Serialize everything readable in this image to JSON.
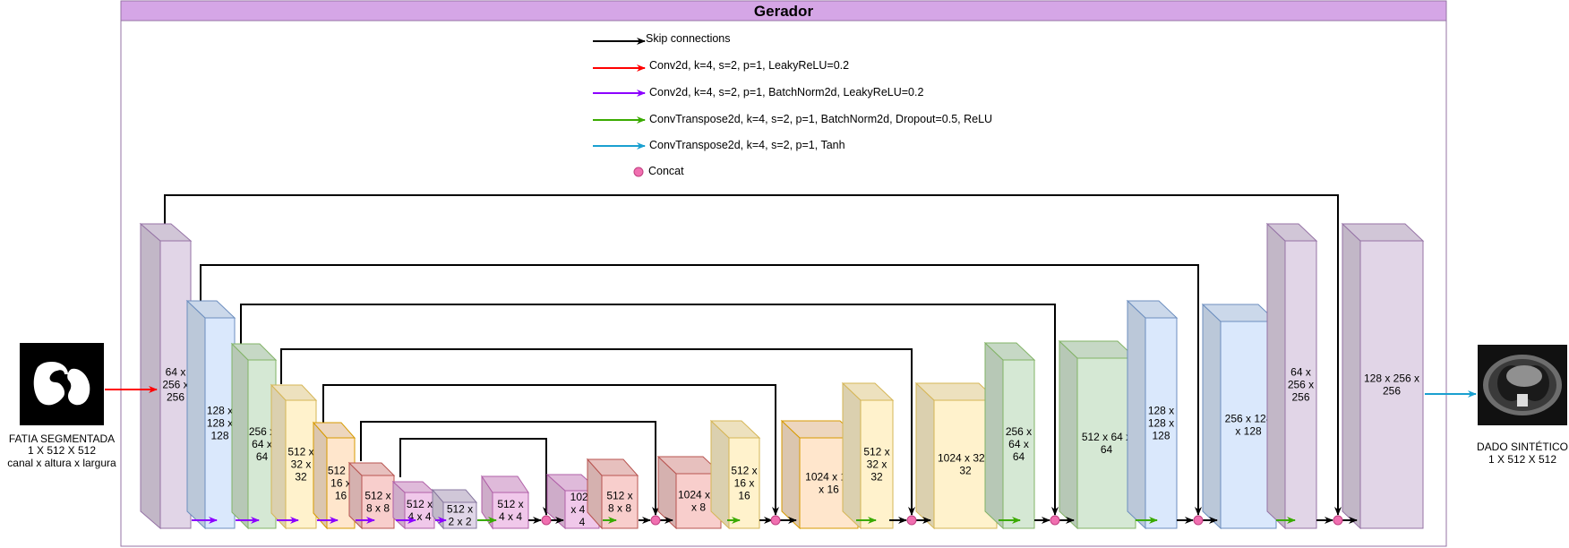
{
  "title": "Gerador",
  "legend": [
    {
      "label": "Skip connections",
      "color": "#000000"
    },
    {
      "label": "Conv2d, k=4, s=2, p=1, LeakyReLU=0.2",
      "color": "#ff0000"
    },
    {
      "label": "Conv2d, k=4, s=2, p=1, BatchNorm2d, LeakyReLU=0.2",
      "color": "#8c00ff"
    },
    {
      "label": "ConvTranspose2d, k=4, s=2, p=1, BatchNorm2d, Dropout=0.5, ReLU",
      "color": "#3aaa00"
    },
    {
      "label": "ConvTranspose2d, k=4, s=2, p=1, Tanh",
      "color": "#1aa0d0"
    },
    {
      "label": "Concat",
      "color": "#f06fb0"
    }
  ],
  "input": {
    "lines": [
      "FATIA SEGMENTADA",
      "1 X 512 X 512",
      "canal x altura x largura"
    ]
  },
  "output": {
    "lines": [
      "DADO SINTÉTICO",
      "1 X 512 X 512"
    ]
  },
  "blocks": [
    {
      "id": "e1",
      "lines": [
        "64 x",
        "256 x",
        "256"
      ]
    },
    {
      "id": "e2",
      "lines": [
        "128 x",
        "128 x",
        "128"
      ]
    },
    {
      "id": "e3",
      "lines": [
        "256 x",
        "64 x",
        "64"
      ]
    },
    {
      "id": "e4",
      "lines": [
        "512 x",
        "32 x",
        "32"
      ]
    },
    {
      "id": "e5",
      "lines": [
        "512 x",
        "16 x",
        "16"
      ]
    },
    {
      "id": "e6",
      "lines": [
        "512 x",
        "8 x 8"
      ]
    },
    {
      "id": "e7",
      "lines": [
        "512 x",
        "4 x 4"
      ]
    },
    {
      "id": "b",
      "lines": [
        "512 x",
        "2 x 2"
      ]
    },
    {
      "id": "d1",
      "lines": [
        "512 x",
        "4 x 4"
      ]
    },
    {
      "id": "c1",
      "lines": [
        "1024",
        "x 4 x",
        "4"
      ]
    },
    {
      "id": "d2",
      "lines": [
        "512 x",
        "8 x 8"
      ]
    },
    {
      "id": "c2",
      "lines": [
        "1024 x 8",
        "x 8"
      ]
    },
    {
      "id": "d3",
      "lines": [
        "512 x",
        "16 x",
        "16"
      ]
    },
    {
      "id": "c3",
      "lines": [
        "1024 x 16",
        "x 16"
      ]
    },
    {
      "id": "d4",
      "lines": [
        "512 x",
        "32 x",
        "32"
      ]
    },
    {
      "id": "c4",
      "lines": [
        "1024 x 32 x",
        "32"
      ]
    },
    {
      "id": "d5",
      "lines": [
        "256 x",
        "64 x",
        "64"
      ]
    },
    {
      "id": "c5",
      "lines": [
        "512 x 64 x",
        "64"
      ]
    },
    {
      "id": "d6",
      "lines": [
        "128 x",
        "128 x",
        "128"
      ]
    },
    {
      "id": "c6",
      "lines": [
        "256 x 128",
        "x 128"
      ]
    },
    {
      "id": "d7",
      "lines": [
        "64 x",
        "256 x",
        "256"
      ]
    },
    {
      "id": "c7",
      "lines": [
        "128 x 256 x",
        "256"
      ]
    }
  ]
}
